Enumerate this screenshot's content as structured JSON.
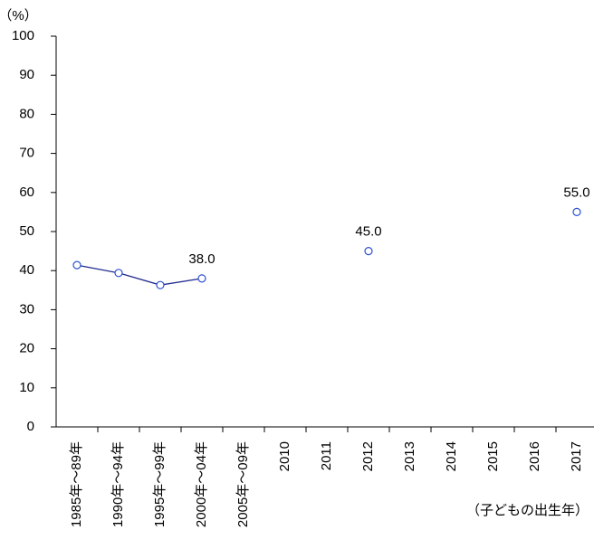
{
  "chart_data": {
    "type": "line",
    "y_label": "（%）",
    "x_label": "（子どもの出生年）",
    "categories": [
      "1985年～89年",
      "1990年～94年",
      "1995年～99年",
      "2000年～04年",
      "2005年～09年",
      "2010",
      "2011",
      "2012",
      "2013",
      "2014",
      "2015",
      "2016",
      "2017"
    ],
    "series": [
      {
        "color": "#1f2a8c",
        "values": [
          41.4,
          39.4,
          36.3,
          38.0,
          null,
          null,
          null,
          45.0,
          null,
          null,
          null,
          null,
          55.0
        ],
        "value_labels": [
          null,
          null,
          null,
          "38.0",
          null,
          null,
          null,
          "45.0",
          null,
          null,
          null,
          null,
          "55.0"
        ]
      }
    ],
    "ylim": [
      0,
      100
    ],
    "yticks": [
      0,
      10,
      20,
      30,
      40,
      50,
      60,
      70,
      80,
      90,
      100
    ],
    "grid": false
  }
}
